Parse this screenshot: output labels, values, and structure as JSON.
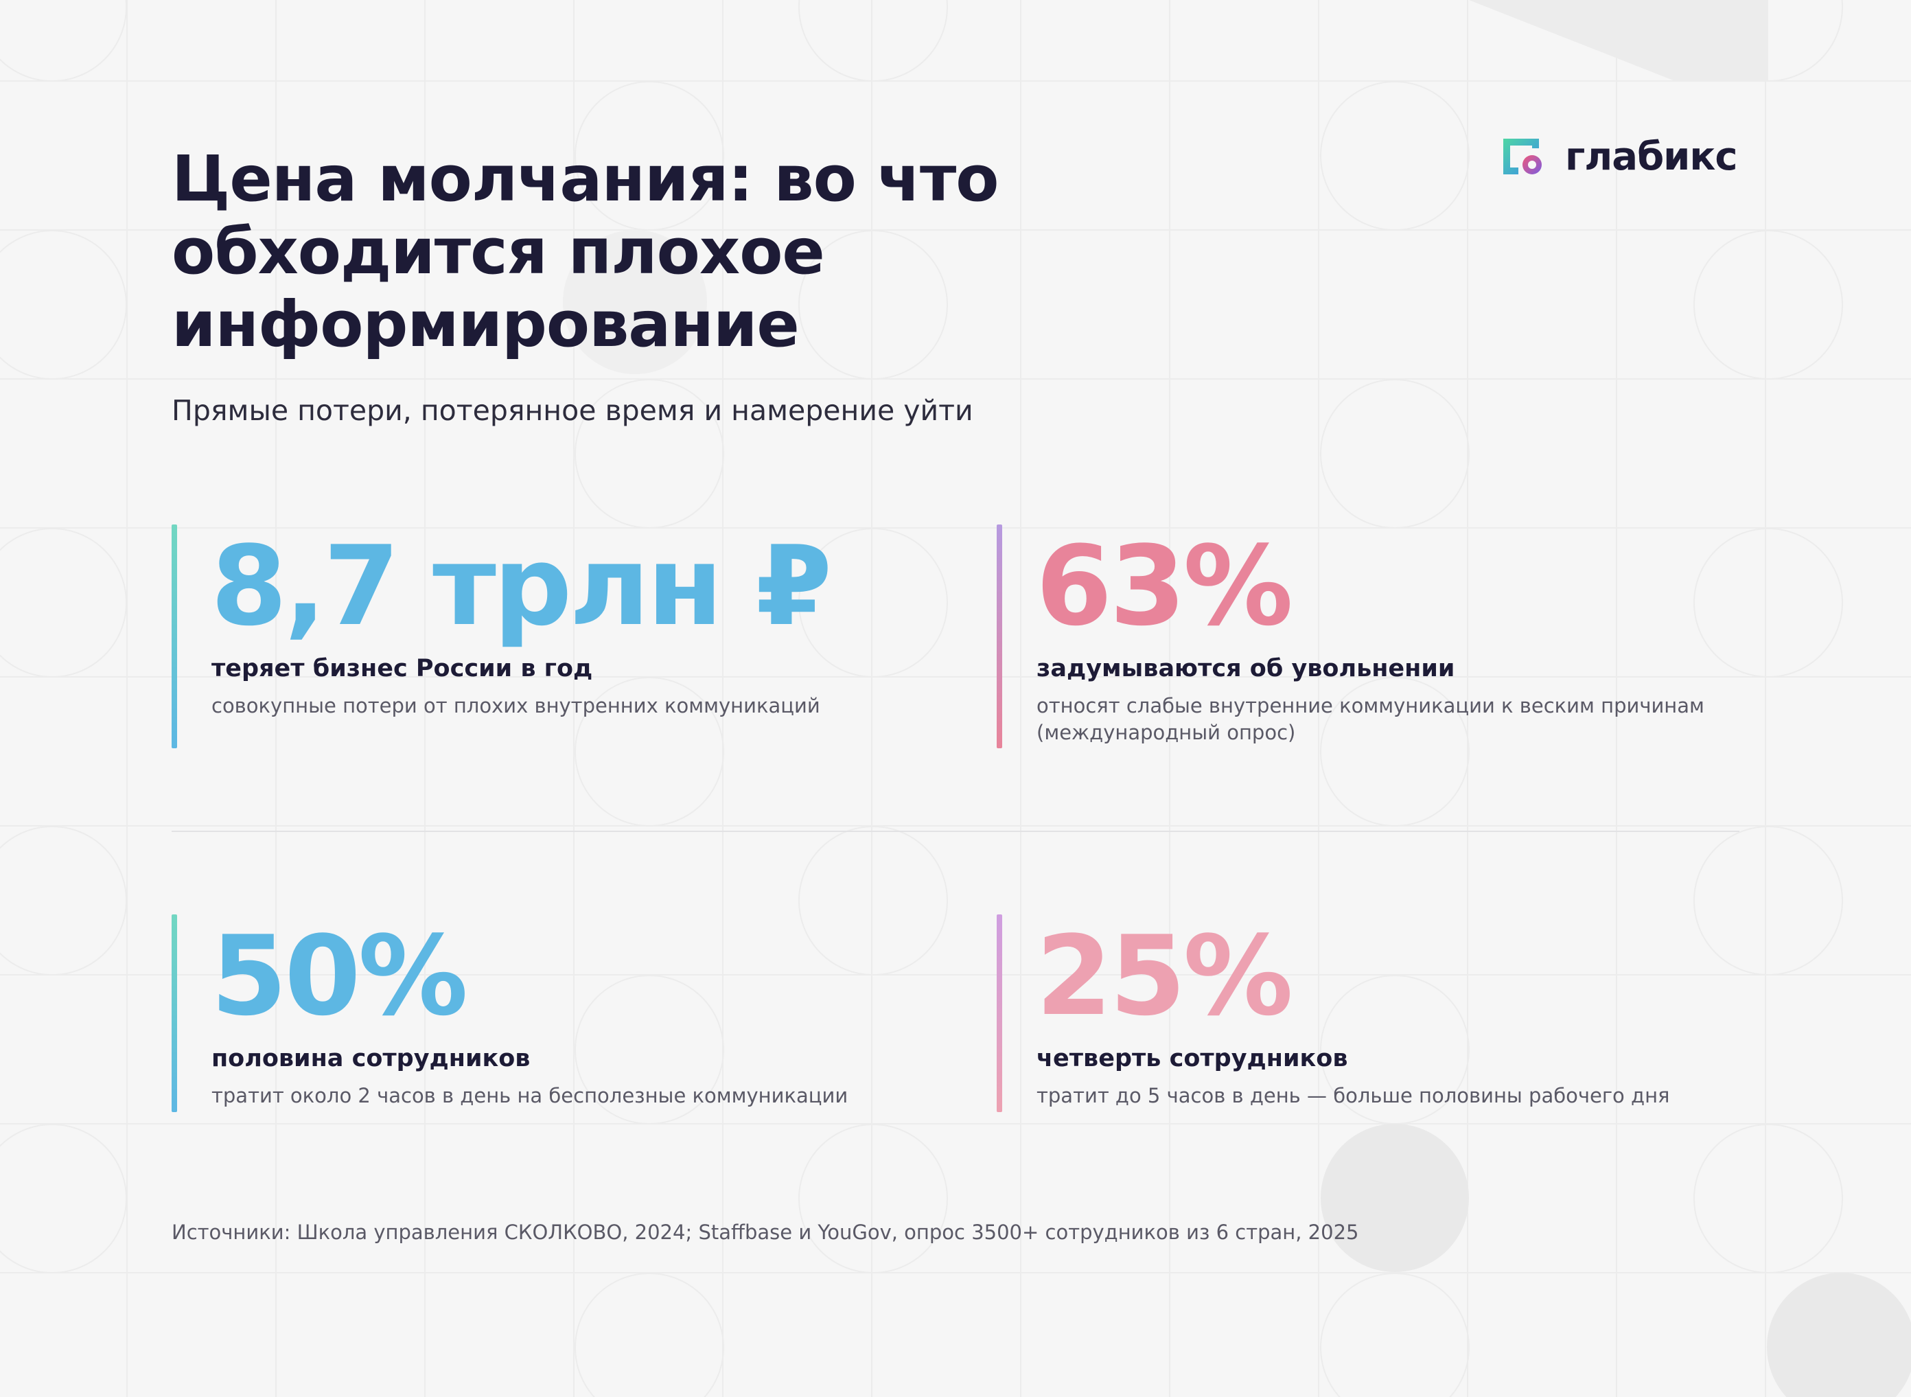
{
  "title": "Цена молчания: во что обходится плохое информирование",
  "subtitle": "Прямые потери, потерянное время и намерение уйти",
  "logo": {
    "text": "глабикс"
  },
  "stats": [
    {
      "value": "8,7 трлн ₽",
      "label": "теряет бизнес России в год",
      "description": "совокупные потери от плохих внутренних коммуникаций",
      "value_color": "#5db7e3",
      "bar_gradient": [
        "#72d7c2",
        "#5db7e3"
      ]
    },
    {
      "value": "63%",
      "label": "задумываются об увольнении",
      "description": "относят слабые внутренние коммуникации к веским причинам (международный опрос)",
      "value_color": "#e8849a",
      "bar_gradient": [
        "#b69ae0",
        "#e8849a"
      ]
    },
    {
      "value": "50%",
      "label": "половина сотрудников",
      "description": "тратит около 2 часов в день на бесполезные коммуникации",
      "value_color": "#5db7e3",
      "bar_gradient": [
        "#72d7c2",
        "#5db7e3"
      ]
    },
    {
      "value": "25%",
      "label": "четверть сотрудников",
      "description": "тратит до 5 часов в день — больше половины рабочего дня",
      "value_color": "#eda1b1",
      "bar_gradient": [
        "#cf9ee0",
        "#eda1b1"
      ]
    }
  ],
  "sources": "Источники: Школа управления СКОЛКОВО, 2024; Staffbase и YouGov, опрос 3500+ сотрудников из 6 стран, 2025"
}
